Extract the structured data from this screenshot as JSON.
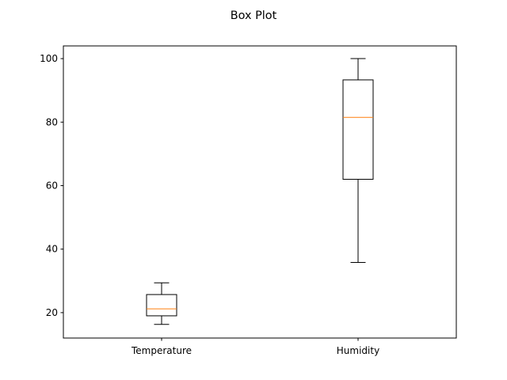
{
  "chart_data": {
    "type": "box",
    "title": "Box Plot",
    "xlabel": "",
    "ylabel": "",
    "categories": [
      "Temperature",
      "Humidity"
    ],
    "boxes": [
      {
        "label": "Temperature",
        "whisker_low": 16.3,
        "q1": 19.0,
        "median": 21.2,
        "q3": 25.7,
        "whisker_high": 29.4
      },
      {
        "label": "Humidity",
        "whisker_low": 35.8,
        "q1": 62.0,
        "median": 81.5,
        "q3": 93.3,
        "whisker_high": 100.0
      }
    ],
    "yticks": [
      20,
      40,
      60,
      80,
      100
    ],
    "ylim": [
      12.0,
      104.0
    ],
    "grid": false,
    "colors": {
      "box": "#000000",
      "median": "#ff7f0e",
      "axes": "#000000"
    }
  }
}
